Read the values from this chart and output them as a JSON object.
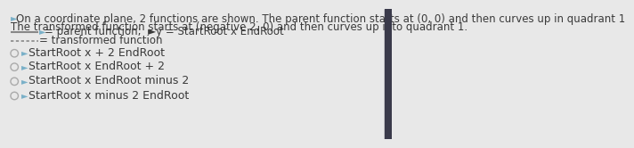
{
  "background_color": "#e8e8e8",
  "right_bar_color": "#3a3a4a",
  "title_line1": "►On a coordinate plane, 2 functions are shown. The parent function starts at (0, 0) and then curves up in quadrant 1",
  "title_line2": "The transformed function starts at (negative 2, 0) and then curves up into quadrant 1.",
  "legend_solid_label": "= parent function;  ►y = StartRoot x EndRoot",
  "legend_dashed_label": "= transformed function",
  "options": [
    "StartRoot x + 2 EndRoot",
    "StartRoot x EndRoot + 2",
    "StartRoot x EndRoot minus 2",
    "StartRoot x minus 2 EndRoot"
  ],
  "text_color": "#3a3a3a",
  "legend_icon_color": "#7ab0c8",
  "option_icon_color": "#7ab0c8",
  "circle_color": "#aaaaaa",
  "solid_line_color": "#888888",
  "dashed_line_color": "#888888",
  "font_size_body": 8.5,
  "font_size_options": 9.0,
  "title_icon_color": "#7ab0c8"
}
